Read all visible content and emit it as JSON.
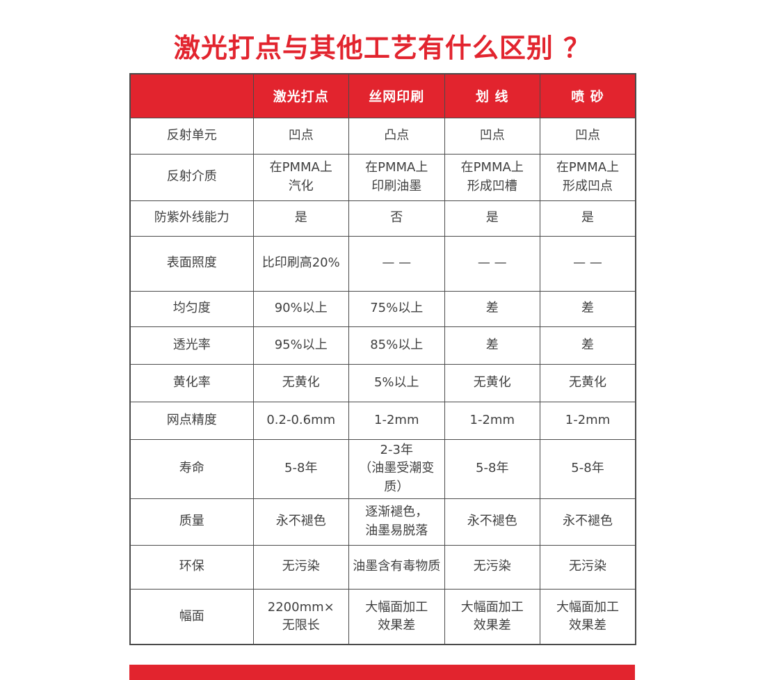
{
  "page": {
    "title": "激光打点与其他工艺有什么区别 ？"
  },
  "colors": {
    "accent_red": "#e2242e",
    "header_text": "#ffffff",
    "body_text": "#3f3f3f",
    "grid_line": "#4a4a4a"
  },
  "table": {
    "column_headers": [
      "",
      "激光打点",
      "丝网印刷",
      "划 线",
      "喷 砂"
    ],
    "rows": [
      {
        "label": "反射单元",
        "cells": [
          "凹点",
          "凸点",
          "凹点",
          "凹点"
        ]
      },
      {
        "label": "反射介质",
        "cells": [
          "在PMMA上\n汽化",
          "在PMMA上\n印刷油墨",
          "在PMMA上\n形成凹槽",
          "在PMMA上\n形成凹点"
        ]
      },
      {
        "label": "防紫外线能力",
        "cells": [
          "是",
          "否",
          "是",
          "是"
        ]
      },
      {
        "label": "表面照度",
        "cells": [
          "比印刷高20%",
          "— —",
          "— —",
          "— —"
        ]
      },
      {
        "label": "均匀度",
        "cells": [
          "90%以上",
          "75%以上",
          "差",
          "差"
        ]
      },
      {
        "label": "透光率",
        "cells": [
          "95%以上",
          "85%以上",
          "差",
          "差"
        ]
      },
      {
        "label": "黄化率",
        "cells": [
          "无黄化",
          "5%以上",
          "无黄化",
          "无黄化"
        ]
      },
      {
        "label": "网点精度",
        "cells": [
          "0.2-0.6mm",
          "1-2mm",
          "1-2mm",
          "1-2mm"
        ]
      },
      {
        "label": "寿命",
        "cells": [
          "5-8年",
          "2-3年\n（油墨受潮变质）",
          "5-8年",
          "5-8年"
        ]
      },
      {
        "label": "质量",
        "cells": [
          "永不褪色",
          "逐渐褪色，\n油墨易脱落",
          "永不褪色",
          "永不褪色"
        ]
      },
      {
        "label": "环保",
        "cells": [
          "无污染",
          "油墨含有毒物质",
          "无污染",
          "无污染"
        ]
      },
      {
        "label": "幅面",
        "cells": [
          "2200mm×\n无限长",
          "大幅面加工\n效果差",
          "大幅面加工\n效果差",
          "大幅面加工\n效果差"
        ]
      }
    ]
  },
  "chart_data": {
    "type": "table",
    "title": "激光打点与其他工艺有什么区别 ？",
    "columns": [
      "",
      "激光打点",
      "丝网印刷",
      "划 线",
      "喷 砂"
    ],
    "rows": [
      [
        "反射单元",
        "凹点",
        "凸点",
        "凹点",
        "凹点"
      ],
      [
        "反射介质",
        "在PMMA上汽化",
        "在PMMA上印刷油墨",
        "在PMMA上形成凹槽",
        "在PMMA上形成凹点"
      ],
      [
        "防紫外线能力",
        "是",
        "否",
        "是",
        "是"
      ],
      [
        "表面照度",
        "比印刷高20%",
        "— —",
        "— —",
        "— —"
      ],
      [
        "均匀度",
        "90%以上",
        "75%以上",
        "差",
        "差"
      ],
      [
        "透光率",
        "95%以上",
        "85%以上",
        "差",
        "差"
      ],
      [
        "黄化率",
        "无黄化",
        "5%以上",
        "无黄化",
        "无黄化"
      ],
      [
        "网点精度",
        "0.2-0.6mm",
        "1-2mm",
        "1-2mm",
        "1-2mm"
      ],
      [
        "寿命",
        "5-8年",
        "2-3年（油墨受潮变质）",
        "5-8年",
        "5-8年"
      ],
      [
        "质量",
        "永不褪色",
        "逐渐褪色，油墨易脱落",
        "永不褪色",
        "永不褪色"
      ],
      [
        "环保",
        "无污染",
        "油墨含有毒物质",
        "无污染",
        "无污染"
      ],
      [
        "幅面",
        "2200mm×无限长",
        "大幅面加工效果差",
        "大幅面加工效果差",
        "大幅面加工效果差"
      ]
    ],
    "layout": {
      "header_background": "#e2242e",
      "grid": "on",
      "legend": "none"
    }
  }
}
